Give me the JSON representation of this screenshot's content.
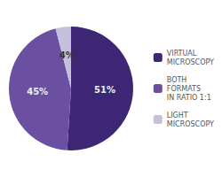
{
  "chart_data": {
    "type": "pie",
    "categories": [
      "VIRTUAL\nMICROSCOPY",
      "BOTH\nFORMATS\nIN RATIO 1:1",
      "LIGHT\nMICROSCOPY"
    ],
    "values": [
      51,
      45,
      4
    ],
    "value_labels": [
      "51%",
      "45%",
      "4%"
    ],
    "colors": [
      "#3d2775",
      "#6b4fa0",
      "#c5c0dc"
    ],
    "data_labels": true,
    "legend": "right"
  }
}
